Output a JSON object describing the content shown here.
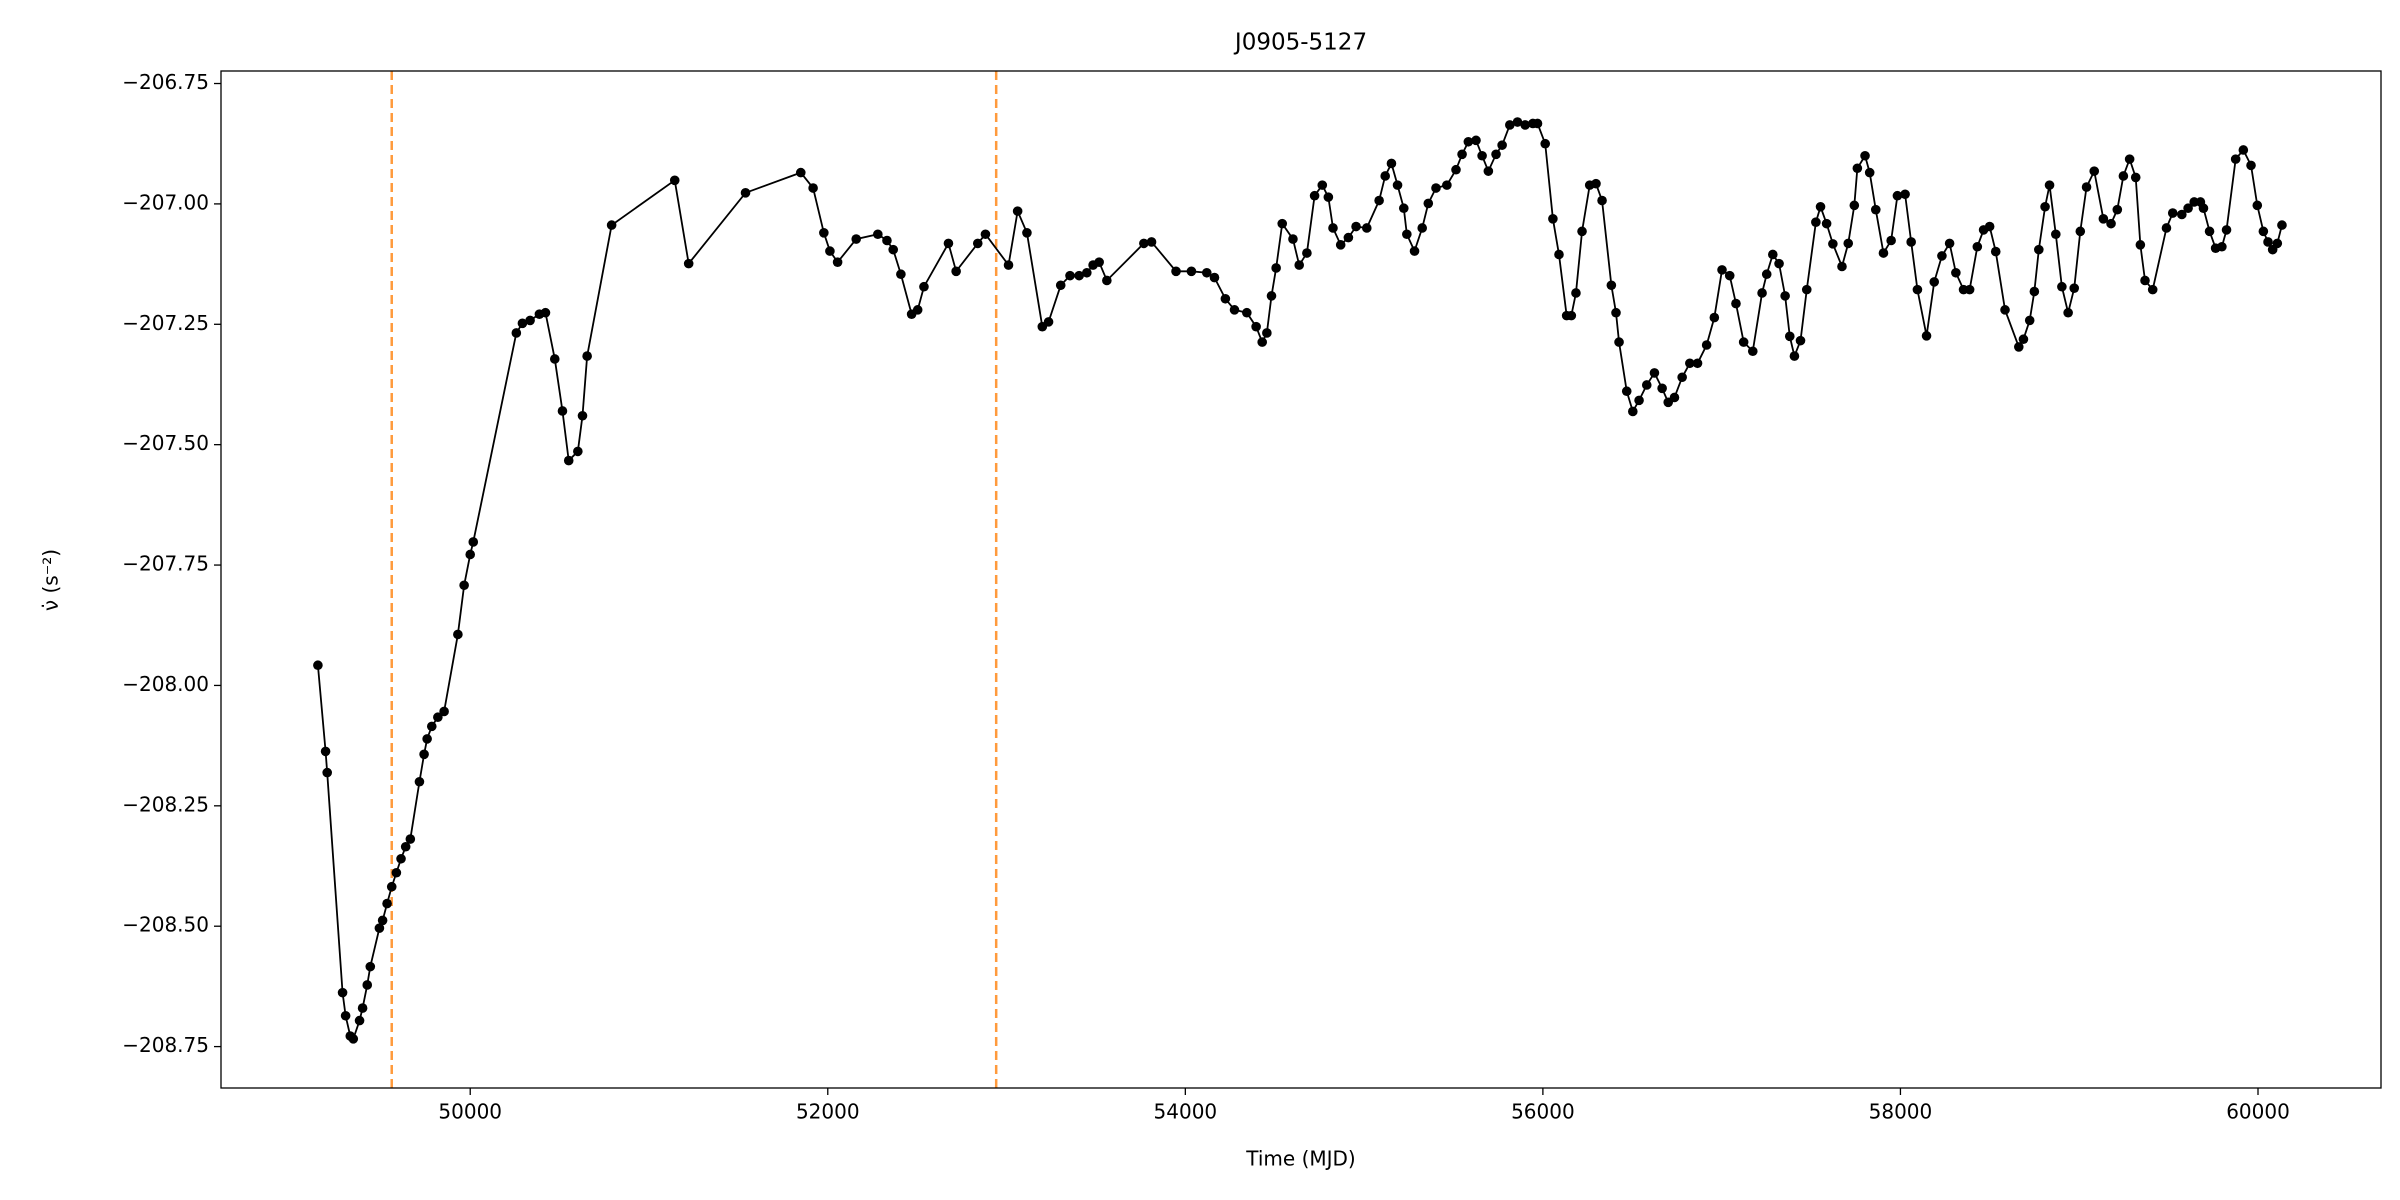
{
  "chart_data": {
    "type": "line",
    "title": "J0905-5127",
    "xlabel": "Time (MJD)",
    "ylabel": "ν̇ (s⁻²)",
    "xlim": [
      48606,
      60688
    ],
    "ylim": [
      -208.836,
      -206.724
    ],
    "xticks": [
      50000,
      52000,
      54000,
      56000,
      58000,
      60000
    ],
    "yticks": [
      {
        "value": -206.75,
        "label": "−206.75"
      },
      {
        "value": -207.0,
        "label": "−207.00"
      },
      {
        "value": -207.25,
        "label": "−207.25"
      },
      {
        "value": -207.5,
        "label": "−207.50"
      },
      {
        "value": -207.75,
        "label": "−207.75"
      },
      {
        "value": -208.0,
        "label": "−208.00"
      },
      {
        "value": -208.25,
        "label": "−208.25"
      },
      {
        "value": -208.5,
        "label": "−208.50"
      },
      {
        "value": -208.75,
        "label": "−208.75"
      }
    ],
    "vlines": [
      49561,
      52942
    ],
    "vline_color": "#ff9a3c",
    "series": [
      {
        "color": "#000000",
        "x": [
          49148,
          49191,
          49200,
          49286,
          49303,
          49329,
          49346,
          49381,
          49398,
          49424,
          49441,
          49492,
          49510,
          49535,
          49561,
          49587,
          49613,
          49639,
          49665,
          49716,
          49742,
          49759,
          49785,
          49819,
          49854,
          49931,
          49966,
          50000,
          50017,
          50258,
          50292,
          50335,
          50387,
          50421,
          50473,
          50516,
          50551,
          50602,
          50628,
          50654,
          50791,
          51144,
          51222,
          51540,
          51849,
          51918,
          51978,
          52012,
          52055,
          52159,
          52280,
          52331,
          52366,
          52409,
          52469,
          52503,
          52538,
          52675,
          52718,
          52839,
          52882,
          53011,
          53062,
          53114,
          53200,
          53235,
          53303,
          53355,
          53406,
          53449,
          53484,
          53518,
          53561,
          53768,
          53811,
          53948,
          54034,
          54120,
          54163,
          54224,
          54275,
          54344,
          54396,
          54430,
          54456,
          54482,
          54508,
          54542,
          54602,
          54637,
          54680,
          54723,
          54766,
          54800,
          54826,
          54869,
          54912,
          54955,
          55015,
          55084,
          55118,
          55153,
          55187,
          55222,
          55239,
          55282,
          55325,
          55359,
          55402,
          55463,
          55514,
          55548,
          55583,
          55626,
          55660,
          55695,
          55738,
          55772,
          55815,
          55858,
          55901,
          55944,
          55970,
          56013,
          56056,
          56090,
          56133,
          56159,
          56185,
          56219,
          56262,
          56297,
          56331,
          56383,
          56409,
          56426,
          56469,
          56503,
          56538,
          56581,
          56624,
          56667,
          56701,
          56736,
          56779,
          56822,
          56865,
          56916,
          56959,
          57002,
          57045,
          57080,
          57123,
          57174,
          57226,
          57252,
          57286,
          57321,
          57355,
          57381,
          57407,
          57441,
          57476,
          57527,
          57553,
          57587,
          57622,
          57673,
          57708,
          57742,
          57759,
          57802,
          57828,
          57862,
          57905,
          57948,
          57983,
          58026,
          58060,
          58095,
          58146,
          58189,
          58232,
          58275,
          58310,
          58353,
          58387,
          58430,
          58465,
          58499,
          58533,
          58585,
          58662,
          58688,
          58723,
          58749,
          58774,
          58809,
          58834,
          58869,
          58903,
          58938,
          58972,
          59006,
          59041,
          59084,
          59135,
          59178,
          59213,
          59247,
          59282,
          59316,
          59342,
          59368,
          59411,
          59488,
          59523,
          59574,
          59609,
          59643,
          59678,
          59695,
          59729,
          59763,
          59798,
          59824,
          59875,
          59918,
          59961,
          59996,
          60030,
          60056,
          60082,
          60108,
          60134
        ],
        "values": [
          -207.958,
          -208.137,
          -208.181,
          -208.638,
          -208.686,
          -208.728,
          -208.734,
          -208.696,
          -208.67,
          -208.622,
          -208.584,
          -208.504,
          -208.488,
          -208.453,
          -208.418,
          -208.389,
          -208.36,
          -208.335,
          -208.319,
          -208.2,
          -208.143,
          -208.111,
          -208.085,
          -208.066,
          -208.054,
          -207.894,
          -207.792,
          -207.728,
          -207.702,
          -207.268,
          -207.248,
          -207.242,
          -207.229,
          -207.226,
          -207.322,
          -207.43,
          -207.533,
          -207.514,
          -207.44,
          -207.316,
          -207.044,
          -206.951,
          -207.124,
          -206.977,
          -206.935,
          -206.967,
          -207.06,
          -207.098,
          -207.121,
          -207.073,
          -207.063,
          -207.076,
          -207.095,
          -207.146,
          -207.229,
          -207.22,
          -207.172,
          -207.082,
          -207.14,
          -207.082,
          -207.063,
          -207.127,
          -207.015,
          -207.06,
          -207.255,
          -207.245,
          -207.169,
          -207.149,
          -207.149,
          -207.143,
          -207.127,
          -207.121,
          -207.159,
          -207.082,
          -207.079,
          -207.14,
          -207.14,
          -207.143,
          -207.153,
          -207.197,
          -207.22,
          -207.226,
          -207.255,
          -207.287,
          -207.268,
          -207.191,
          -207.133,
          -207.041,
          -207.073,
          -207.127,
          -207.102,
          -206.983,
          -206.961,
          -206.986,
          -207.05,
          -207.085,
          -207.07,
          -207.047,
          -207.05,
          -206.993,
          -206.942,
          -206.916,
          -206.961,
          -207.009,
          -207.063,
          -207.098,
          -207.05,
          -206.999,
          -206.967,
          -206.961,
          -206.929,
          -206.897,
          -206.871,
          -206.868,
          -206.9,
          -206.932,
          -206.897,
          -206.878,
          -206.836,
          -206.83,
          -206.836,
          -206.833,
          -206.833,
          -206.875,
          -207.031,
          -207.105,
          -207.232,
          -207.232,
          -207.185,
          -207.057,
          -206.961,
          -206.958,
          -206.993,
          -207.169,
          -207.226,
          -207.287,
          -207.389,
          -207.431,
          -207.408,
          -207.376,
          -207.351,
          -207.383,
          -207.412,
          -207.402,
          -207.36,
          -207.331,
          -207.331,
          -207.293,
          -207.236,
          -207.137,
          -207.149,
          -207.207,
          -207.287,
          -207.306,
          -207.185,
          -207.146,
          -207.105,
          -207.124,
          -207.191,
          -207.275,
          -207.316,
          -207.284,
          -207.178,
          -207.038,
          -207.006,
          -207.041,
          -207.083,
          -207.13,
          -207.082,
          -207.003,
          -206.926,
          -206.9,
          -206.935,
          -207.012,
          -207.102,
          -207.076,
          -206.983,
          -206.98,
          -207.079,
          -207.178,
          -207.274,
          -207.162,
          -207.108,
          -207.082,
          -207.143,
          -207.178,
          -207.178,
          -207.089,
          -207.054,
          -207.047,
          -207.099,
          -207.22,
          -207.297,
          -207.281,
          -207.242,
          -207.182,
          -207.095,
          -207.006,
          -206.961,
          -207.063,
          -207.172,
          -207.226,
          -207.175,
          -207.057,
          -206.965,
          -206.932,
          -207.031,
          -207.041,
          -207.012,
          -206.942,
          -206.907,
          -206.945,
          -207.085,
          -207.159,
          -207.178,
          -207.05,
          -207.019,
          -207.022,
          -207.009,
          -206.996,
          -206.996,
          -207.009,
          -207.057,
          -207.092,
          -207.089,
          -207.054,
          -206.907,
          -206.888,
          -206.92,
          -207.003,
          -207.057,
          -207.079,
          -207.095,
          -207.082,
          -207.044
        ]
      }
    ]
  }
}
